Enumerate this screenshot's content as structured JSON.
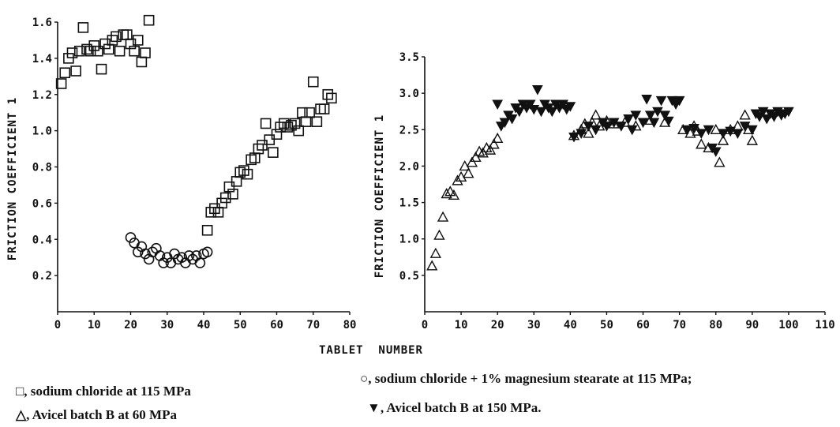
{
  "shared_xlabel": "TABLET  NUMBER",
  "legend": [
    "□, sodium chloride at 115 MPa",
    "△, Avicel batch B at 60 MPa",
    "○, sodium chloride + 1% magnesium stearate at 115 MPa;",
    "▼, Avicel batch B at 150 MPa."
  ],
  "colors": {
    "ink": "#111111",
    "background": "#ffffff"
  },
  "chart_data": [
    {
      "type": "scatter",
      "title": "",
      "xlabel": "",
      "ylabel": "FRICTION COEFFICIENT 1",
      "xlim": [
        0,
        80
      ],
      "ylim": [
        0,
        1.6
      ],
      "xticks": [
        "0",
        "10",
        "20",
        "30",
        "40",
        "50",
        "60",
        "70",
        "80"
      ],
      "yticks": [
        "0.2",
        "0.4",
        "0.6",
        "0.8",
        "1.0",
        "1.2",
        "1.4",
        "1.6"
      ],
      "series": [
        {
          "marker": "square",
          "points": [
            [
              1,
              1.26
            ],
            [
              2,
              1.32
            ],
            [
              3,
              1.4
            ],
            [
              4,
              1.43
            ],
            [
              5,
              1.33
            ],
            [
              6,
              1.44
            ],
            [
              7,
              1.57
            ],
            [
              8,
              1.45
            ],
            [
              9,
              1.44
            ],
            [
              10,
              1.47
            ],
            [
              11,
              1.44
            ],
            [
              12,
              1.34
            ],
            [
              13,
              1.48
            ],
            [
              14,
              1.45
            ],
            [
              15,
              1.5
            ],
            [
              16,
              1.52
            ],
            [
              17,
              1.44
            ],
            [
              18,
              1.53
            ],
            [
              19,
              1.53
            ],
            [
              20,
              1.48
            ],
            [
              21,
              1.44
            ],
            [
              22,
              1.5
            ],
            [
              23,
              1.38
            ],
            [
              24,
              1.43
            ],
            [
              25,
              1.61
            ],
            [
              41,
              0.45
            ],
            [
              42,
              0.55
            ],
            [
              43,
              0.57
            ],
            [
              44,
              0.55
            ],
            [
              45,
              0.6
            ],
            [
              46,
              0.63
            ],
            [
              47,
              0.69
            ],
            [
              48,
              0.65
            ],
            [
              49,
              0.72
            ],
            [
              50,
              0.77
            ],
            [
              51,
              0.78
            ],
            [
              52,
              0.76
            ],
            [
              53,
              0.84
            ],
            [
              54,
              0.85
            ],
            [
              55,
              0.9
            ],
            [
              56,
              0.92
            ],
            [
              57,
              1.04
            ],
            [
              58,
              0.95
            ],
            [
              59,
              0.88
            ],
            [
              60,
              0.98
            ],
            [
              61,
              1.02
            ],
            [
              62,
              1.04
            ],
            [
              63,
              1.02
            ],
            [
              64,
              1.03
            ],
            [
              65,
              1.04
            ],
            [
              66,
              1.0
            ],
            [
              67,
              1.1
            ],
            [
              68,
              1.05
            ],
            [
              69,
              1.1
            ],
            [
              70,
              1.27
            ],
            [
              71,
              1.05
            ],
            [
              72,
              1.12
            ],
            [
              73,
              1.12
            ],
            [
              74,
              1.2
            ],
            [
              75,
              1.18
            ]
          ]
        },
        {
          "marker": "circle",
          "points": [
            [
              20,
              0.41
            ],
            [
              21,
              0.38
            ],
            [
              22,
              0.33
            ],
            [
              23,
              0.36
            ],
            [
              24,
              0.32
            ],
            [
              25,
              0.29
            ],
            [
              26,
              0.33
            ],
            [
              27,
              0.35
            ],
            [
              28,
              0.31
            ],
            [
              29,
              0.27
            ],
            [
              30,
              0.3
            ],
            [
              31,
              0.27
            ],
            [
              32,
              0.32
            ],
            [
              33,
              0.29
            ],
            [
              34,
              0.3
            ],
            [
              35,
              0.27
            ],
            [
              36,
              0.31
            ],
            [
              37,
              0.29
            ],
            [
              38,
              0.31
            ],
            [
              39,
              0.27
            ],
            [
              40,
              0.32
            ],
            [
              41,
              0.33
            ]
          ]
        }
      ]
    },
    {
      "type": "scatter",
      "title": "",
      "xlabel": "",
      "ylabel": "FRICTION COEFFICIENT 1",
      "xlim": [
        0,
        110
      ],
      "ylim": [
        0,
        3.5
      ],
      "xticks": [
        "0",
        "10",
        "20",
        "30",
        "40",
        "50",
        "60",
        "70",
        "80",
        "90",
        "100",
        "110"
      ],
      "yticks": [
        "0.5",
        "1.0",
        "1.5",
        "2.0",
        "2.5",
        "3.0",
        "3.5"
      ],
      "series": [
        {
          "marker": "triangle-open",
          "points": [
            [
              2,
              0.63
            ],
            [
              3,
              0.8
            ],
            [
              4,
              1.05
            ],
            [
              5,
              1.3
            ],
            [
              6,
              1.62
            ],
            [
              7,
              1.65
            ],
            [
              8,
              1.6
            ],
            [
              9,
              1.8
            ],
            [
              10,
              1.85
            ],
            [
              11,
              2.0
            ],
            [
              12,
              1.9
            ],
            [
              13,
              2.05
            ],
            [
              14,
              2.12
            ],
            [
              15,
              2.2
            ],
            [
              16,
              2.18
            ],
            [
              17,
              2.25
            ],
            [
              18,
              2.22
            ],
            [
              19,
              2.3
            ],
            [
              20,
              2.38
            ],
            [
              41,
              2.42
            ],
            [
              43,
              2.5
            ],
            [
              44,
              2.58
            ],
            [
              45,
              2.45
            ],
            [
              46,
              2.6
            ],
            [
              47,
              2.7
            ],
            [
              48,
              2.55
            ],
            [
              50,
              2.62
            ],
            [
              52,
              2.58
            ],
            [
              55,
              2.6
            ],
            [
              58,
              2.55
            ],
            [
              62,
              2.63
            ],
            [
              66,
              2.6
            ],
            [
              71,
              2.5
            ],
            [
              73,
              2.45
            ],
            [
              74,
              2.55
            ],
            [
              75,
              2.48
            ],
            [
              76,
              2.3
            ],
            [
              78,
              2.25
            ],
            [
              80,
              2.5
            ],
            [
              81,
              2.05
            ],
            [
              82,
              2.35
            ],
            [
              84,
              2.5
            ],
            [
              86,
              2.55
            ],
            [
              88,
              2.7
            ],
            [
              89,
              2.5
            ],
            [
              90,
              2.35
            ]
          ]
        },
        {
          "marker": "triangle-down-filled",
          "points": [
            [
              20,
              2.85
            ],
            [
              21,
              2.55
            ],
            [
              22,
              2.6
            ],
            [
              23,
              2.7
            ],
            [
              24,
              2.65
            ],
            [
              25,
              2.8
            ],
            [
              26,
              2.75
            ],
            [
              27,
              2.85
            ],
            [
              28,
              2.8
            ],
            [
              29,
              2.85
            ],
            [
              30,
              2.78
            ],
            [
              31,
              3.05
            ],
            [
              32,
              2.75
            ],
            [
              33,
              2.85
            ],
            [
              34,
              2.8
            ],
            [
              35,
              2.75
            ],
            [
              36,
              2.85
            ],
            [
              37,
              2.8
            ],
            [
              38,
              2.85
            ],
            [
              39,
              2.78
            ],
            [
              40,
              2.82
            ],
            [
              41,
              2.4
            ],
            [
              43,
              2.45
            ],
            [
              45,
              2.55
            ],
            [
              47,
              2.5
            ],
            [
              49,
              2.6
            ],
            [
              50,
              2.55
            ],
            [
              52,
              2.6
            ],
            [
              54,
              2.55
            ],
            [
              56,
              2.65
            ],
            [
              57,
              2.5
            ],
            [
              58,
              2.7
            ],
            [
              60,
              2.6
            ],
            [
              61,
              2.92
            ],
            [
              62,
              2.7
            ],
            [
              63,
              2.6
            ],
            [
              64,
              2.75
            ],
            [
              65,
              2.9
            ],
            [
              66,
              2.7
            ],
            [
              67,
              2.62
            ],
            [
              68,
              2.9
            ],
            [
              69,
              2.85
            ],
            [
              70,
              2.9
            ],
            [
              72,
              2.5
            ],
            [
              74,
              2.52
            ],
            [
              76,
              2.45
            ],
            [
              78,
              2.5
            ],
            [
              79,
              2.25
            ],
            [
              80,
              2.2
            ],
            [
              82,
              2.45
            ],
            [
              84,
              2.48
            ],
            [
              86,
              2.45
            ],
            [
              88,
              2.55
            ],
            [
              90,
              2.5
            ],
            [
              91,
              2.72
            ],
            [
              92,
              2.68
            ],
            [
              93,
              2.75
            ],
            [
              94,
              2.65
            ],
            [
              95,
              2.72
            ],
            [
              96,
              2.68
            ],
            [
              97,
              2.75
            ],
            [
              98,
              2.7
            ],
            [
              99,
              2.72
            ],
            [
              100,
              2.75
            ]
          ]
        }
      ]
    }
  ]
}
